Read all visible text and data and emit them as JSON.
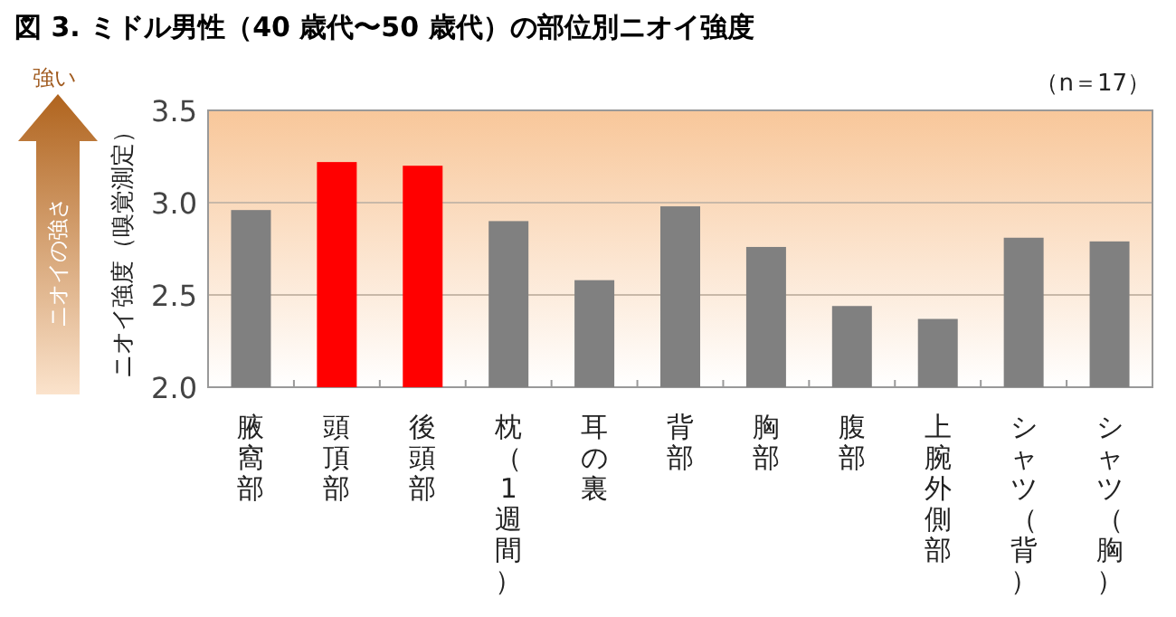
{
  "chart_data": {
    "type": "bar",
    "title": "図 3. ミドル男性（40 歳代〜50 歳代）の部位別ニオイ強度",
    "ylabel": "ニオイ強度（嗅覚測定）",
    "annotations": [
      "（n＝17）",
      "強い",
      "ニオイの強さ"
    ],
    "categories": [
      "腋窩部",
      "頭頂部",
      "後頭部",
      "枕（1週間）",
      "耳の裏",
      "背部",
      "胸部",
      "腹部",
      "上腕外側部",
      "シャツ（背）",
      "シャツ（胸）"
    ],
    "values": [
      2.96,
      3.22,
      3.2,
      2.9,
      2.58,
      2.98,
      2.76,
      2.44,
      2.37,
      2.81,
      2.79
    ],
    "colors": [
      "#808080",
      "#ff0000",
      "#ff0000",
      "#808080",
      "#808080",
      "#808080",
      "#808080",
      "#808080",
      "#808080",
      "#808080",
      "#808080"
    ],
    "ylim": [
      2.0,
      3.5
    ],
    "yticks": [
      {
        "value": 2,
        "label": "2.0"
      },
      2.5,
      {
        "value": 3,
        "label": "3.0"
      },
      3.5
    ],
    "grid": "y"
  }
}
